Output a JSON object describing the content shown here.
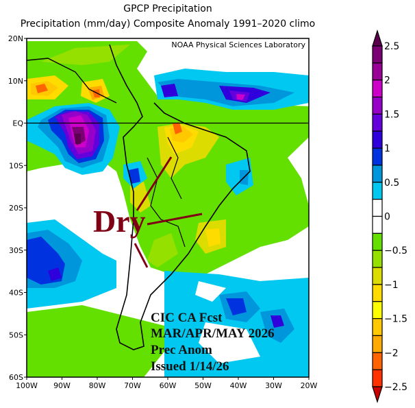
{
  "title": "GPCP Precipitation",
  "subtitle": "Precipitation (mm/day) Composite Anomaly 1991–2020 climo",
  "credit": "NOAA Physical Sciences Laboratory",
  "annotation": {
    "dry_label": "Dry",
    "lines": [
      "CIC CA Fcst",
      "MAR/APR/MAY 2026",
      "Prec Anom",
      "Issued 1/14/26"
    ],
    "arrow_color": "#800015"
  },
  "map": {
    "lat_range": [
      -60,
      20
    ],
    "lon_range": [
      -100,
      -20
    ],
    "lat_ticks": [
      "20N",
      "10N",
      "EQ",
      "10S",
      "20S",
      "30S",
      "40S",
      "50S",
      "60S"
    ],
    "lon_ticks": [
      "100W",
      "90W",
      "80W",
      "70W",
      "60W",
      "50W",
      "40W",
      "30W",
      "20W"
    ]
  },
  "colorbar": {
    "labels": [
      "2.5",
      "2",
      "1.5",
      "1",
      "0.5",
      "0",
      "−0.5",
      "−1",
      "−1.5",
      "−2",
      "−2.5"
    ],
    "bins_top_to_bottom": [
      "#5a004e",
      "#7a0074",
      "#980096",
      "#cc00c8",
      "#9600c8",
      "#6400dc",
      "#3000dc",
      "#0032e0",
      "#0096dc",
      "#00c8f0",
      "#ffffff",
      "#ffffff",
      "#64e000",
      "#96e000",
      "#dcdc00",
      "#ffdc00",
      "#ffff00",
      "#ffc800",
      "#ffaa00",
      "#ff6400",
      "#ff3200",
      "#c80000"
    ]
  }
}
